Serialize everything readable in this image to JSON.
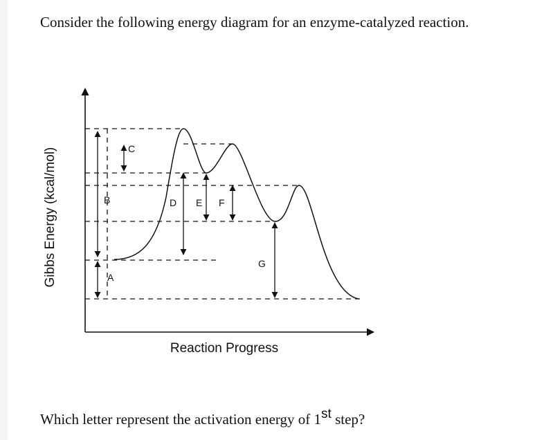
{
  "question": {
    "prompt": "Consider the following energy diagram for an enzyme-catalyzed reaction.",
    "text_before": "Which letter represent the activation energy of 1",
    "superscript": "st",
    "text_after": " step?"
  },
  "diagram": {
    "y_axis_label": "Gibbs Energy (kcal/mol)",
    "x_axis_label": "Reaction Progress",
    "labels": [
      "A",
      "B",
      "C",
      "D",
      "E",
      "F",
      "G"
    ]
  }
}
